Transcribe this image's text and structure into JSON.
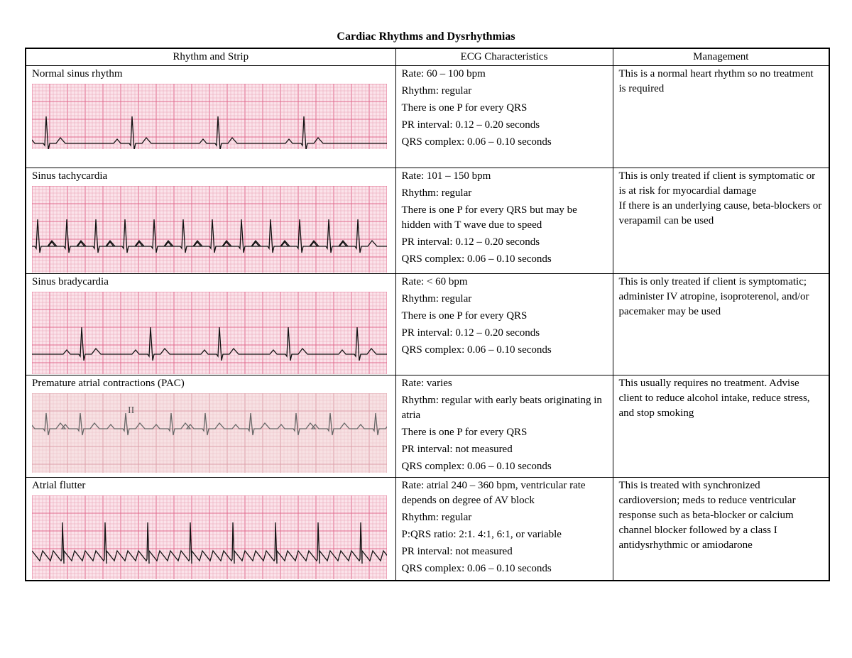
{
  "title": "Cardiac Rhythms and Dysrhythmias",
  "table": {
    "header": [
      "Rhythm and Strip",
      "ECG Characteristics",
      "Management"
    ],
    "rows": [
      {
        "rhythm": "Normal sinus rhythm",
        "characteristics": [
          "Rate: 60 – 100 bpm",
          "Rhythm: regular",
          "There is one P for every QRS",
          "PR interval: 0.12 – 0.20 seconds",
          "QRS complex: 0.06 – 0.10 seconds"
        ],
        "management": [
          "This is a normal heart rhythm so no treatment is required"
        ]
      },
      {
        "rhythm": "Sinus tachycardia",
        "characteristics": [
          "Rate: 101 – 150 bpm",
          "Rhythm: regular",
          "There is one P for every QRS but may be hidden with T wave due to speed",
          "PR interval: 0.12 – 0.20 seconds",
          "QRS complex: 0.06 – 0.10 seconds"
        ],
        "management": [
          "This is only treated if client is symptomatic or is at risk for myocardial damage",
          "If there is an underlying cause, beta-blockers or verapamil can be used"
        ]
      },
      {
        "rhythm": "Sinus bradycardia",
        "characteristics": [
          "Rate: < 60 bpm",
          "Rhythm: regular",
          "There is one P for every QRS",
          "PR interval: 0.12 – 0.20 seconds",
          "QRS complex: 0.06 – 0.10 seconds"
        ],
        "management": [
          "This is only treated if client is symptomatic; administer IV atropine, isoproterenol, and/or pacemaker may be used"
        ]
      },
      {
        "rhythm": "Premature atrial contractions (PAC)",
        "strip_label": "II",
        "characteristics": [
          "Rate: varies",
          "Rhythm: regular with early beats originating in atria",
          "There is one P for every QRS",
          "PR interval: not measured",
          "QRS complex: 0.06 – 0.10 seconds"
        ],
        "management": [
          "This usually requires no treatment. Advise client to reduce alcohol intake, reduce stress, and stop smoking"
        ]
      },
      {
        "rhythm": "Atrial flutter",
        "characteristics": [
          "Rate: atrial 240 – 360 bpm, ventricular rate depends on degree of AV block",
          "Rhythm: regular",
          "P:QRS ratio: 2:1. 4:1, 6:1, or variable",
          "PR interval: not measured",
          "QRS complex: 0.06 – 0.10 seconds"
        ],
        "management": [
          "This is treated with synchronized cardioversion; meds to reduce ventricular response  such as beta-blocker or calcium channel blocker followed by a class I antidysrhythmic or amiodarone"
        ]
      }
    ]
  }
}
